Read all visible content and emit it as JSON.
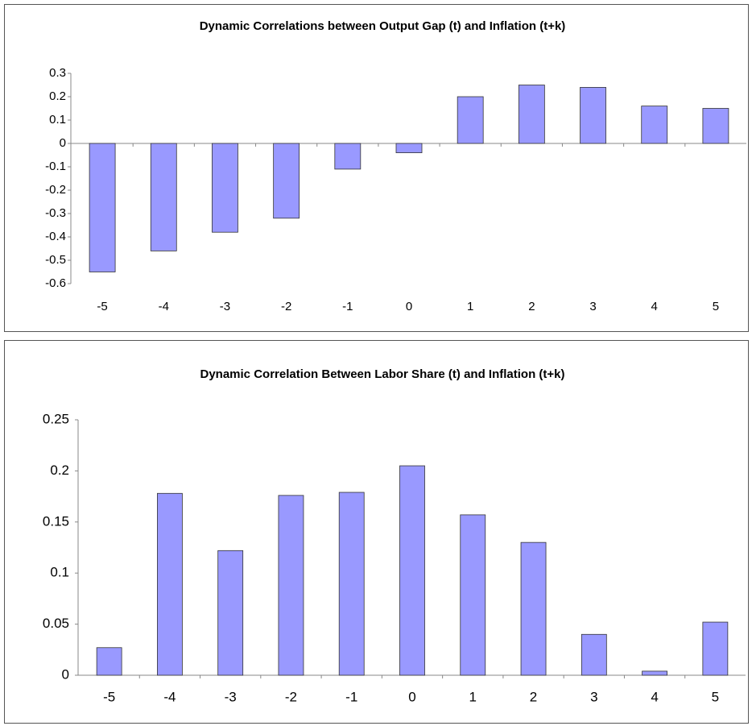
{
  "chart_data": [
    {
      "type": "bar",
      "title": "Dynamic Correlations between Output Gap (t) and Inflation (t+k)",
      "categories": [
        "-5",
        "-4",
        "-3",
        "-2",
        "-1",
        "0",
        "1",
        "2",
        "3",
        "4",
        "5"
      ],
      "values": [
        -0.55,
        -0.46,
        -0.38,
        -0.32,
        -0.11,
        -0.04,
        0.2,
        0.25,
        0.24,
        0.16,
        0.15
      ],
      "color": "#9999ff",
      "ylim": [
        -0.6,
        0.3
      ],
      "yticks": [
        -0.6,
        -0.5,
        -0.4,
        -0.3,
        -0.2,
        -0.1,
        0,
        0.1,
        0.2,
        0.3
      ],
      "grid": false
    },
    {
      "type": "bar",
      "title": "Dynamic Correlation Between Labor Share (t) and Inflation (t+k)",
      "categories": [
        "-5",
        "-4",
        "-3",
        "-2",
        "-1",
        "0",
        "1",
        "2",
        "3",
        "4",
        "5"
      ],
      "values": [
        0.027,
        0.178,
        0.122,
        0.176,
        0.179,
        0.205,
        0.157,
        0.13,
        0.04,
        0.004,
        0.052
      ],
      "color": "#9999ff",
      "ylim": [
        0,
        0.25
      ],
      "yticks": [
        0,
        0.05,
        0.1,
        0.15,
        0.2,
        0.25
      ],
      "grid": false
    }
  ]
}
